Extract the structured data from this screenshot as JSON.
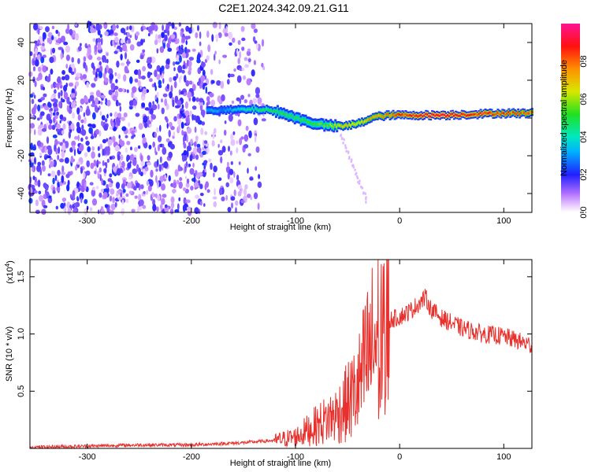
{
  "title": "C2E1.2024.342.09.21.G11",
  "chart_data": [
    {
      "type": "heatmap",
      "xlabel": "Height of straight line (km)",
      "ylabel": "Frequency (Hz)",
      "xlim": [
        -355,
        127
      ],
      "ylim": [
        -50,
        50
      ],
      "xticks": [
        -300,
        -200,
        -100,
        0,
        100
      ],
      "yticks": [
        -40,
        -20,
        0,
        20,
        40
      ],
      "colorbar": {
        "label": "Normalized spectral amplitude",
        "range": [
          0,
          1
        ],
        "ticks": [
          0.0,
          0.2,
          0.4,
          0.6,
          0.8
        ],
        "tick_labels": [
          "0.0",
          "0.2",
          "0.4",
          "0.6",
          "0.8"
        ]
      },
      "signal_track": [
        {
          "x": -185,
          "y": 4.5,
          "amp": 0.35
        },
        {
          "x": -170,
          "y": 4.0,
          "amp": 0.3
        },
        {
          "x": -150,
          "y": 4.5,
          "amp": 0.45
        },
        {
          "x": -130,
          "y": 4.5,
          "amp": 0.5
        },
        {
          "x": -115,
          "y": 3.0,
          "amp": 0.55
        },
        {
          "x": -100,
          "y": 0.0,
          "amp": 0.55
        },
        {
          "x": -85,
          "y": -2.5,
          "amp": 0.55
        },
        {
          "x": -70,
          "y": -4.0,
          "amp": 0.6
        },
        {
          "x": -55,
          "y": -4.5,
          "amp": 0.75
        },
        {
          "x": -40,
          "y": -3.0,
          "amp": 0.7
        },
        {
          "x": -25,
          "y": 0.5,
          "amp": 0.8
        },
        {
          "x": -10,
          "y": 1.5,
          "amp": 0.85
        },
        {
          "x": 10,
          "y": 1.5,
          "amp": 0.95
        },
        {
          "x": 40,
          "y": 1.5,
          "amp": 1.0
        },
        {
          "x": 70,
          "y": 2.0,
          "amp": 0.95
        },
        {
          "x": 95,
          "y": 2.5,
          "amp": 0.9
        },
        {
          "x": 120,
          "y": 2.5,
          "amp": 0.85
        }
      ]
    },
    {
      "type": "line",
      "xlabel": "Height of straight line (km)",
      "ylabel": "SNR (10 * v/v)",
      "y_multiplier": "(x10",
      "y_multiplier_exp": "4",
      "xlim": [
        -355,
        127
      ],
      "ylim": [
        0,
        1.65
      ],
      "xticks": [
        -300,
        -200,
        -100,
        0,
        100
      ],
      "yticks": [
        0.5,
        1.0,
        1.5
      ],
      "ytick_labels": [
        "0.5",
        "1.0",
        "1.5"
      ],
      "series": [
        {
          "color": "#e8302c",
          "x": [
            -355,
            -300,
            -250,
            -200,
            -150,
            -120,
            -100,
            -80,
            -60,
            -50,
            -40,
            -30,
            -20,
            -15,
            -10,
            0,
            10,
            20,
            25,
            30,
            40,
            60,
            80,
            100,
            127
          ],
          "y": [
            0.01,
            0.02,
            0.03,
            0.03,
            0.05,
            0.07,
            0.1,
            0.2,
            0.3,
            0.4,
            0.52,
            0.8,
            1.0,
            0.9,
            1.12,
            1.15,
            1.2,
            1.28,
            1.32,
            1.22,
            1.14,
            1.05,
            1.0,
            0.98,
            0.9
          ]
        }
      ]
    }
  ]
}
